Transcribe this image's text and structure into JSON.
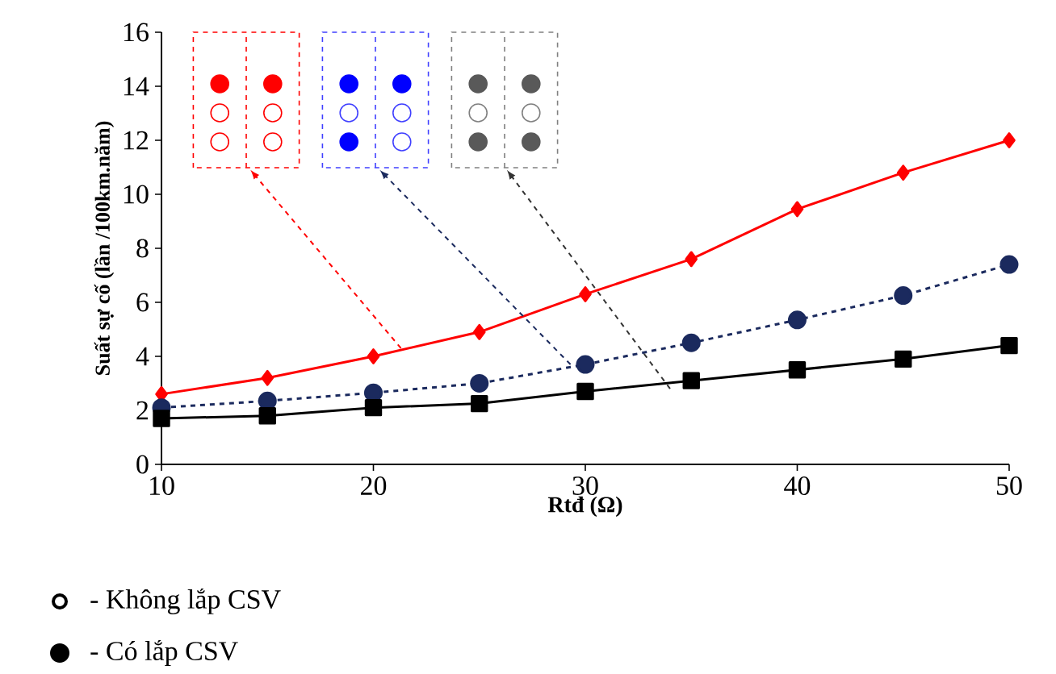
{
  "chart_data": {
    "type": "line",
    "xlabel": "Rtđ (Ω)",
    "ylabel": "Suất sự cố (lần /100km.năm)",
    "x": [
      10,
      15,
      20,
      25,
      30,
      35,
      40,
      45,
      50
    ],
    "series": [
      {
        "color": "#ff0000",
        "marker": "diamond",
        "line_style": "solid",
        "values": [
          2.6,
          3.2,
          4.0,
          4.9,
          6.3,
          7.6,
          9.45,
          10.8,
          12.0
        ]
      },
      {
        "color": "#1b2a5e",
        "marker": "circle",
        "line_style": "dashed",
        "values": [
          2.1,
          2.35,
          2.65,
          3.0,
          3.7,
          4.5,
          5.35,
          6.25,
          7.4
        ]
      },
      {
        "color": "#000000",
        "marker": "square",
        "line_style": "solid",
        "values": [
          1.7,
          1.8,
          2.1,
          2.25,
          2.7,
          3.1,
          3.5,
          3.9,
          4.4
        ]
      }
    ],
    "xlim": [
      10,
      50
    ],
    "xticks": [
      10,
      20,
      30,
      40,
      50
    ],
    "ylim": [
      0,
      16
    ],
    "yticks": [
      0,
      2,
      4,
      6,
      8,
      10,
      12,
      14,
      16
    ],
    "grid": false,
    "annotations": [
      "- Không lắp CSV",
      "- Có lắp CSV"
    ]
  }
}
